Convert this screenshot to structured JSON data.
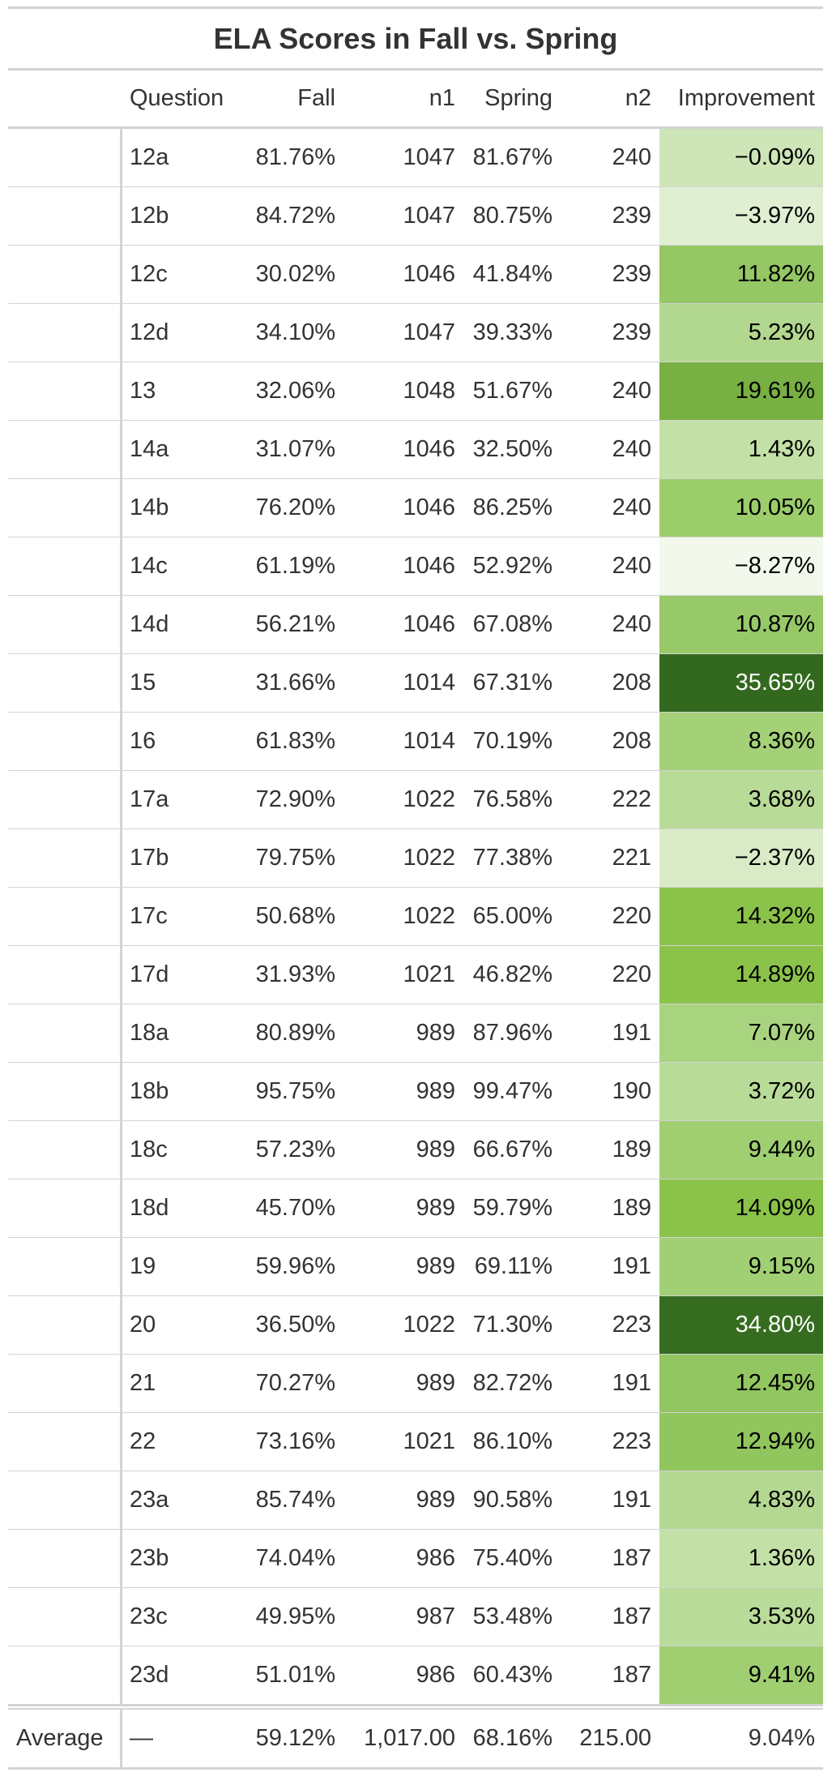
{
  "title": "ELA Scores in Fall vs. Spring",
  "headers": {
    "stub": "",
    "question": "Question",
    "fall": "Fall",
    "n1": "n1",
    "spring": "Spring",
    "n2": "n2",
    "improvement": "Improvement"
  },
  "rows": [
    {
      "question": "12a",
      "fall": "81.76%",
      "n1": "1047",
      "spring": "81.67%",
      "n2": "240",
      "improvement": "−0.09%",
      "improvement_value": -0.09,
      "fill": "#cde5b7",
      "text_color": "#000000"
    },
    {
      "question": "12b",
      "fall": "84.72%",
      "n1": "1047",
      "spring": "80.75%",
      "n2": "239",
      "improvement": "−3.97%",
      "improvement_value": -3.97,
      "fill": "#e0efd2",
      "text_color": "#000000"
    },
    {
      "question": "12c",
      "fall": "30.02%",
      "n1": "1046",
      "spring": "41.84%",
      "n2": "239",
      "improvement": "11.82%",
      "improvement_value": 11.82,
      "fill": "#95c765",
      "text_color": "#000000"
    },
    {
      "question": "12d",
      "fall": "34.10%",
      "n1": "1047",
      "spring": "39.33%",
      "n2": "239",
      "improvement": "5.23%",
      "improvement_value": 5.23,
      "fill": "#b2d78e",
      "text_color": "#000000"
    },
    {
      "question": "13",
      "fall": "32.06%",
      "n1": "1048",
      "spring": "51.67%",
      "n2": "240",
      "improvement": "19.61%",
      "improvement_value": 19.61,
      "fill": "#78b043",
      "text_color": "#000000"
    },
    {
      "question": "14a",
      "fall": "31.07%",
      "n1": "1046",
      "spring": "32.50%",
      "n2": "240",
      "improvement": "1.43%",
      "improvement_value": 1.43,
      "fill": "#c3e1a6",
      "text_color": "#000000"
    },
    {
      "question": "14b",
      "fall": "76.20%",
      "n1": "1046",
      "spring": "86.25%",
      "n2": "240",
      "improvement": "10.05%",
      "improvement_value": 10.05,
      "fill": "#9bcd6b",
      "text_color": "#000000"
    },
    {
      "question": "14c",
      "fall": "61.19%",
      "n1": "1046",
      "spring": "52.92%",
      "n2": "240",
      "improvement": "−8.27%",
      "improvement_value": -8.27,
      "fill": "#f2f8eb",
      "text_color": "#000000"
    },
    {
      "question": "14d",
      "fall": "56.21%",
      "n1": "1046",
      "spring": "67.08%",
      "n2": "240",
      "improvement": "10.87%",
      "improvement_value": 10.87,
      "fill": "#97c969",
      "text_color": "#000000"
    },
    {
      "question": "15",
      "fall": "31.66%",
      "n1": "1014",
      "spring": "67.31%",
      "n2": "208",
      "improvement": "35.65%",
      "improvement_value": 35.65,
      "fill": "#33691e",
      "text_color": "#ffffff"
    },
    {
      "question": "16",
      "fall": "61.83%",
      "n1": "1014",
      "spring": "70.19%",
      "n2": "208",
      "improvement": "8.36%",
      "improvement_value": 8.36,
      "fill": "#a4d177",
      "text_color": "#000000"
    },
    {
      "question": "17a",
      "fall": "72.90%",
      "n1": "1022",
      "spring": "76.58%",
      "n2": "222",
      "improvement": "3.68%",
      "improvement_value": 3.68,
      "fill": "#b9db98",
      "text_color": "#000000"
    },
    {
      "question": "17b",
      "fall": "79.75%",
      "n1": "1022",
      "spring": "77.38%",
      "n2": "221",
      "improvement": "−2.37%",
      "improvement_value": -2.37,
      "fill": "#d8ebc6",
      "text_color": "#000000"
    },
    {
      "question": "17c",
      "fall": "50.68%",
      "n1": "1022",
      "spring": "65.00%",
      "n2": "220",
      "improvement": "14.32%",
      "improvement_value": 14.32,
      "fill": "#8bc34a",
      "text_color": "#000000"
    },
    {
      "question": "17d",
      "fall": "31.93%",
      "n1": "1021",
      "spring": "46.82%",
      "n2": "220",
      "improvement": "14.89%",
      "improvement_value": 14.89,
      "fill": "#8bc34a",
      "text_color": "#000000"
    },
    {
      "question": "18a",
      "fall": "80.89%",
      "n1": "989",
      "spring": "87.96%",
      "n2": "191",
      "improvement": "7.07%",
      "improvement_value": 7.07,
      "fill": "#a9d47f",
      "text_color": "#000000"
    },
    {
      "question": "18b",
      "fall": "95.75%",
      "n1": "989",
      "spring": "99.47%",
      "n2": "190",
      "improvement": "3.72%",
      "improvement_value": 3.72,
      "fill": "#b9db98",
      "text_color": "#000000"
    },
    {
      "question": "18c",
      "fall": "57.23%",
      "n1": "989",
      "spring": "66.67%",
      "n2": "189",
      "improvement": "9.44%",
      "improvement_value": 9.44,
      "fill": "#9fcf71",
      "text_color": "#000000"
    },
    {
      "question": "18d",
      "fall": "45.70%",
      "n1": "989",
      "spring": "59.79%",
      "n2": "189",
      "improvement": "14.09%",
      "improvement_value": 14.09,
      "fill": "#8bc34a",
      "text_color": "#000000"
    },
    {
      "question": "19",
      "fall": "59.96%",
      "n1": "989",
      "spring": "69.11%",
      "n2": "191",
      "improvement": "9.15%",
      "improvement_value": 9.15,
      "fill": "#a0d073",
      "text_color": "#000000"
    },
    {
      "question": "20",
      "fall": "36.50%",
      "n1": "1022",
      "spring": "71.30%",
      "n2": "223",
      "improvement": "34.80%",
      "improvement_value": 34.8,
      "fill": "#356c20",
      "text_color": "#ffffff"
    },
    {
      "question": "21",
      "fall": "70.27%",
      "n1": "989",
      "spring": "82.72%",
      "n2": "191",
      "improvement": "12.45%",
      "improvement_value": 12.45,
      "fill": "#92c660",
      "text_color": "#000000"
    },
    {
      "question": "22",
      "fall": "73.16%",
      "n1": "1021",
      "spring": "86.10%",
      "n2": "223",
      "improvement": "12.94%",
      "improvement_value": 12.94,
      "fill": "#91c55d",
      "text_color": "#000000"
    },
    {
      "question": "23a",
      "fall": "85.74%",
      "n1": "989",
      "spring": "90.58%",
      "n2": "191",
      "improvement": "4.83%",
      "improvement_value": 4.83,
      "fill": "#b4d892",
      "text_color": "#000000"
    },
    {
      "question": "23b",
      "fall": "74.04%",
      "n1": "986",
      "spring": "75.40%",
      "n2": "187",
      "improvement": "1.36%",
      "improvement_value": 1.36,
      "fill": "#c3e1a6",
      "text_color": "#000000"
    },
    {
      "question": "23c",
      "fall": "49.95%",
      "n1": "987",
      "spring": "53.48%",
      "n2": "187",
      "improvement": "3.53%",
      "improvement_value": 3.53,
      "fill": "#badc9a",
      "text_color": "#000000"
    },
    {
      "question": "23d",
      "fall": "51.01%",
      "n1": "986",
      "spring": "60.43%",
      "n2": "187",
      "improvement": "9.41%",
      "improvement_value": 9.41,
      "fill": "#9fcf71",
      "text_color": "#000000"
    }
  ],
  "summary": {
    "stub": "Average",
    "question": "—",
    "fall": "59.12%",
    "n1": "1,017.00",
    "spring": "68.16%",
    "n2": "215.00",
    "improvement": "9.04%"
  },
  "chart_data": {
    "type": "table",
    "title": "ELA Scores in Fall vs. Spring",
    "columns": [
      "Question",
      "Fall",
      "n1",
      "Spring",
      "n2",
      "Improvement"
    ],
    "improvement_fill": "green color scale by Improvement value",
    "rows": [
      [
        "12a",
        "81.76%",
        1047,
        "81.67%",
        240,
        "−0.09%"
      ],
      [
        "12b",
        "84.72%",
        1047,
        "80.75%",
        239,
        "−3.97%"
      ],
      [
        "12c",
        "30.02%",
        1046,
        "41.84%",
        239,
        "11.82%"
      ],
      [
        "12d",
        "34.10%",
        1047,
        "39.33%",
        239,
        "5.23%"
      ],
      [
        "13",
        "32.06%",
        1048,
        "51.67%",
        240,
        "19.61%"
      ],
      [
        "14a",
        "31.07%",
        1046,
        "32.50%",
        240,
        "1.43%"
      ],
      [
        "14b",
        "76.20%",
        1046,
        "86.25%",
        240,
        "10.05%"
      ],
      [
        "14c",
        "61.19%",
        1046,
        "52.92%",
        240,
        "−8.27%"
      ],
      [
        "14d",
        "56.21%",
        1046,
        "67.08%",
        240,
        "10.87%"
      ],
      [
        "15",
        "31.66%",
        1014,
        "67.31%",
        208,
        "35.65%"
      ],
      [
        "16",
        "61.83%",
        1014,
        "70.19%",
        208,
        "8.36%"
      ],
      [
        "17a",
        "72.90%",
        1022,
        "76.58%",
        222,
        "3.68%"
      ],
      [
        "17b",
        "79.75%",
        1022,
        "77.38%",
        221,
        "−2.37%"
      ],
      [
        "17c",
        "50.68%",
        1022,
        "65.00%",
        220,
        "14.32%"
      ],
      [
        "17d",
        "31.93%",
        1021,
        "46.82%",
        220,
        "14.89%"
      ],
      [
        "18a",
        "80.89%",
        989,
        "87.96%",
        191,
        "7.07%"
      ],
      [
        "18b",
        "95.75%",
        989,
        "99.47%",
        190,
        "3.72%"
      ],
      [
        "18c",
        "57.23%",
        989,
        "66.67%",
        189,
        "9.44%"
      ],
      [
        "18d",
        "45.70%",
        989,
        "59.79%",
        189,
        "14.09%"
      ],
      [
        "19",
        "59.96%",
        989,
        "69.11%",
        191,
        "9.15%"
      ],
      [
        "20",
        "36.50%",
        1022,
        "71.30%",
        223,
        "34.80%"
      ],
      [
        "21",
        "70.27%",
        989,
        "82.72%",
        191,
        "12.45%"
      ],
      [
        "22",
        "73.16%",
        1021,
        "86.10%",
        223,
        "12.94%"
      ],
      [
        "23a",
        "85.74%",
        989,
        "90.58%",
        191,
        "4.83%"
      ],
      [
        "23b",
        "74.04%",
        986,
        "75.40%",
        187,
        "1.36%"
      ],
      [
        "23c",
        "49.95%",
        987,
        "53.48%",
        187,
        "3.53%"
      ],
      [
        "23d",
        "51.01%",
        986,
        "60.43%",
        187,
        "9.41%"
      ]
    ],
    "summary": [
      "Average",
      "—",
      "59.12%",
      "1,017.00",
      "68.16%",
      "215.00",
      "9.04%"
    ]
  }
}
